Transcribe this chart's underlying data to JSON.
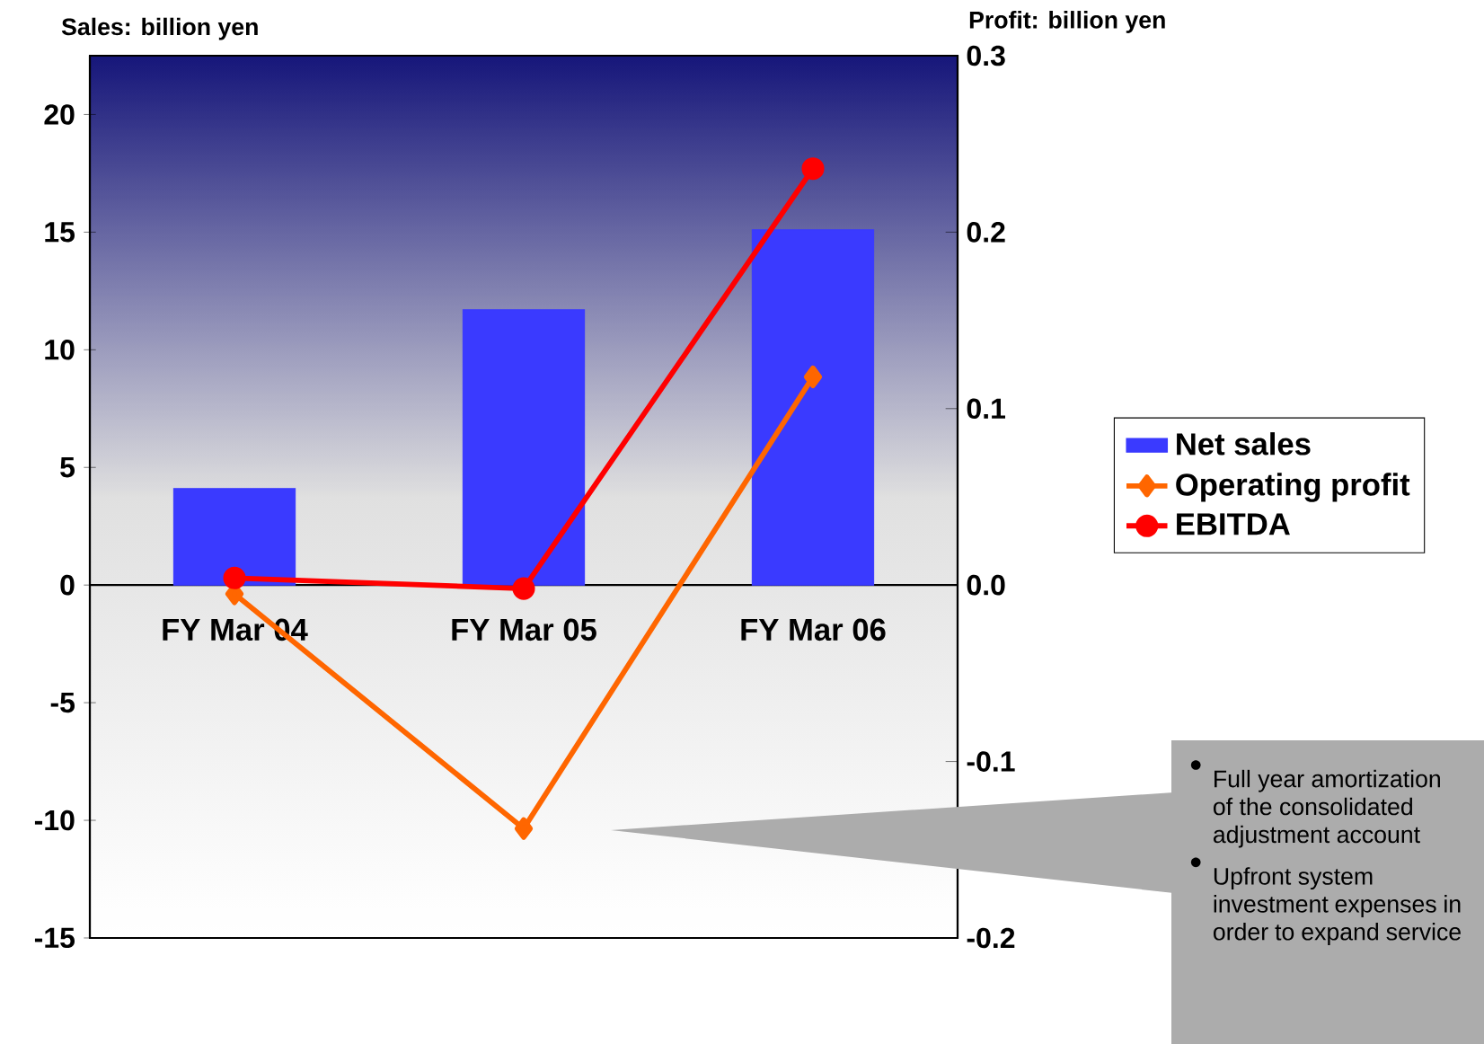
{
  "chart_data": {
    "type": "bar",
    "categories": [
      "FY Mar 04",
      "FY Mar 05",
      "FY Mar 06"
    ],
    "ylabel": "Sales: billion yen",
    "y2label": "Profit: billion yen",
    "series": [
      {
        "name": "Net sales",
        "color": "#3a3aff",
        "values": [
          4.1,
          11.7,
          15.1
        ]
      },
      {
        "name": "Operating profit",
        "type": "line",
        "axis": "y2",
        "marker": "diamond",
        "color": "#ff6600",
        "values": [
          -0.005,
          -0.138,
          0.118
        ]
      },
      {
        "name": "EBITDA",
        "type": "line",
        "axis": "y2",
        "marker": "circle",
        "color": "#ff0000",
        "values": [
          0.004,
          -0.002,
          0.236
        ]
      }
    ],
    "ylim": [
      -15,
      22.5
    ],
    "yticks": [
      -15,
      -10,
      -5,
      0,
      5,
      10,
      15,
      20
    ],
    "y2lim": [
      -0.2,
      0.3
    ],
    "y2ticks": [
      -0.2,
      -0.1,
      {
        "value": 0,
        "label": "0.0"
      },
      0.1,
      0.2,
      0.3
    ],
    "legend": "right",
    "annotations": [
      "Full year amortization of the consolidated adjustment account",
      "Upfront system investment expenses in order to expand service"
    ]
  }
}
